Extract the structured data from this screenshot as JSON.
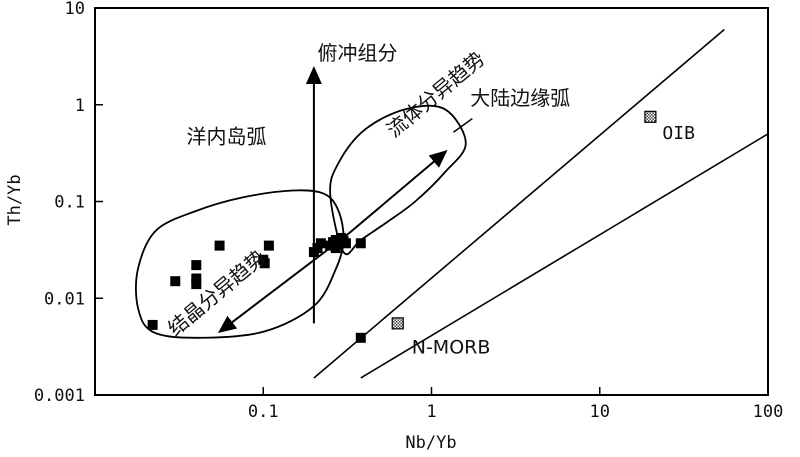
{
  "chart_data": {
    "type": "scatter",
    "xscale": "log",
    "yscale": "log",
    "xlim": [
      0.01,
      100
    ],
    "ylim": [
      0.001,
      10
    ],
    "xlabel": "Nb/Yb",
    "ylabel": "Th/Yb",
    "x_ticks": [
      {
        "value": 0.1,
        "label": "0.1"
      },
      {
        "value": 1,
        "label": "1"
      },
      {
        "value": 10,
        "label": "10"
      },
      {
        "value": 100,
        "label": "100"
      }
    ],
    "y_ticks": [
      {
        "value": 0.001,
        "label": "0.001"
      },
      {
        "value": 0.01,
        "label": "0.01"
      },
      {
        "value": 0.1,
        "label": "0.1"
      },
      {
        "value": 1,
        "label": "1"
      },
      {
        "value": 10,
        "label": "10"
      }
    ],
    "series": [
      {
        "marker": "filled-square",
        "color": "#000000",
        "points": [
          [
            0.022,
            0.0053
          ],
          [
            0.03,
            0.015
          ],
          [
            0.04,
            0.022
          ],
          [
            0.04,
            0.016
          ],
          [
            0.04,
            0.014
          ],
          [
            0.055,
            0.035
          ],
          [
            0.1,
            0.025
          ],
          [
            0.102,
            0.023
          ],
          [
            0.108,
            0.035
          ],
          [
            0.2,
            0.03
          ],
          [
            0.21,
            0.033
          ],
          [
            0.22,
            0.037
          ],
          [
            0.25,
            0.035
          ],
          [
            0.26,
            0.038
          ],
          [
            0.27,
            0.04
          ],
          [
            0.28,
            0.036
          ],
          [
            0.29,
            0.042
          ],
          [
            0.3,
            0.039
          ],
          [
            0.27,
            0.033
          ],
          [
            0.31,
            0.037
          ],
          [
            0.38,
            0.037
          ],
          [
            0.38,
            0.0039
          ]
        ]
      },
      {
        "marker": "hatched-square",
        "color": "#555555",
        "points": [
          [
            0.63,
            0.0055
          ],
          [
            20,
            0.75
          ]
        ]
      }
    ],
    "reference_points": [
      {
        "label": "N-MORB",
        "x": 0.63,
        "y": 0.0055
      },
      {
        "label": "OIB",
        "x": 20,
        "y": 0.75
      }
    ],
    "mantle_array_lines": [
      {
        "x1": 0.2,
        "y1": 0.0015,
        "x2": 55,
        "y2": 6
      },
      {
        "x1": 0.38,
        "y1": 0.0015,
        "x2": 100,
        "y2": 0.5
      }
    ],
    "annotations": [
      {
        "text": "俯冲组分",
        "x": 0.21,
        "y": 2.9
      },
      {
        "text": "洋内岛弧",
        "x": 0.035,
        "y": 0.4
      },
      {
        "text": "大陆边缘弧",
        "x": 1.7,
        "y": 1.0
      },
      {
        "text": "流体分异趋势",
        "x": 0.6,
        "y": 0.45,
        "rotate": -40
      },
      {
        "text": "结晶分异趋势",
        "x": 0.03,
        "y": 0.004,
        "rotate": -40
      }
    ],
    "arrows": [
      {
        "name": "subduction-component",
        "x1": 0.2,
        "y1": 0.0055,
        "x2": 0.2,
        "y2": 2.4
      },
      {
        "name": "fluid-trend",
        "x1": 0.28,
        "y1": 0.038,
        "x2": 1.22,
        "y2": 0.33
      },
      {
        "name": "crystal-trend",
        "x1": 0.26,
        "y1": 0.035,
        "x2": 0.055,
        "y2": 0.0045
      }
    ],
    "regions": [
      {
        "name": "oceanic-arc",
        "points": [
          [
            0.022,
            0.0045
          ],
          [
            0.04,
            0.0039
          ],
          [
            0.1,
            0.0045
          ],
          [
            0.2,
            0.0083
          ],
          [
            0.27,
            0.02
          ],
          [
            0.3,
            0.04
          ],
          [
            0.28,
            0.08
          ],
          [
            0.23,
            0.12
          ],
          [
            0.15,
            0.13
          ],
          [
            0.075,
            0.11
          ],
          [
            0.04,
            0.08
          ],
          [
            0.023,
            0.05
          ],
          [
            0.018,
            0.02
          ],
          [
            0.018,
            0.008
          ]
        ]
      },
      {
        "name": "continental-arc",
        "points": [
          [
            0.3,
            0.03
          ],
          [
            0.38,
            0.04
          ],
          [
            0.55,
            0.062
          ],
          [
            0.8,
            0.1
          ],
          [
            1.2,
            0.2
          ],
          [
            1.6,
            0.4
          ],
          [
            1.2,
            0.9
          ],
          [
            0.7,
            0.9
          ],
          [
            0.4,
            0.55
          ],
          [
            0.28,
            0.25
          ],
          [
            0.25,
            0.12
          ]
        ]
      }
    ]
  }
}
